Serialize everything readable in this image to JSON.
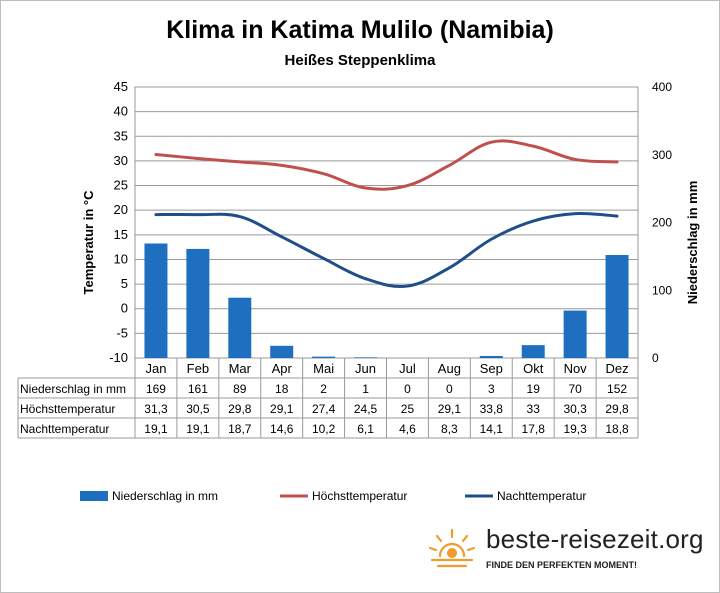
{
  "title": "Klima in Katima Mulilo (Namibia)",
  "subtitle": "Heißes Steppenklima",
  "brand": {
    "name": "beste-reisezeit.org",
    "slogan": "FINDE DEN PERFEKTEN MOMENT!",
    "icon": "sun-icon"
  },
  "chart_data": {
    "type": "bar+line",
    "categories": [
      "Jan",
      "Feb",
      "Mar",
      "Apr",
      "Mai",
      "Jun",
      "Jul",
      "Aug",
      "Sep",
      "Okt",
      "Nov",
      "Dez"
    ],
    "y_left": {
      "label": "Temperatur in °C",
      "min": -10,
      "max": 45,
      "step": 5
    },
    "y_right": {
      "label": "Niederschlag in mm",
      "min": 0,
      "max": 400,
      "step": 100
    },
    "grid": true,
    "legend_position": "bottom",
    "series": [
      {
        "name": "Niederschlag in mm",
        "type": "bar",
        "axis": "right",
        "color": "#1f6fc0",
        "values": [
          169,
          161,
          89,
          18,
          2,
          1,
          0,
          0,
          3,
          19,
          70,
          152
        ],
        "display": [
          "169",
          "161",
          "89",
          "18",
          "2",
          "1",
          "0",
          "0",
          "3",
          "19",
          "70",
          "152"
        ]
      },
      {
        "name": "Höchsttemperatur",
        "type": "line",
        "axis": "left",
        "color": "#c0504d",
        "values": [
          31.3,
          30.5,
          29.8,
          29.1,
          27.4,
          24.5,
          25,
          29.1,
          33.8,
          33,
          30.3,
          29.8
        ],
        "display": [
          "31,3",
          "30,5",
          "29,8",
          "29,1",
          "27,4",
          "24,5",
          "25",
          "29,1",
          "33,8",
          "33",
          "30,3",
          "29,8"
        ]
      },
      {
        "name": "Nachttemperatur",
        "type": "line",
        "axis": "left",
        "color": "#1f4e89",
        "values": [
          19.1,
          19.1,
          18.7,
          14.6,
          10.2,
          6.1,
          4.6,
          8.3,
          14.1,
          17.8,
          19.3,
          18.8
        ],
        "display": [
          "19,1",
          "19,1",
          "18,7",
          "14,6",
          "10,2",
          "6,1",
          "4,6",
          "8,3",
          "14,1",
          "17,8",
          "19,3",
          "18,8"
        ]
      }
    ]
  }
}
